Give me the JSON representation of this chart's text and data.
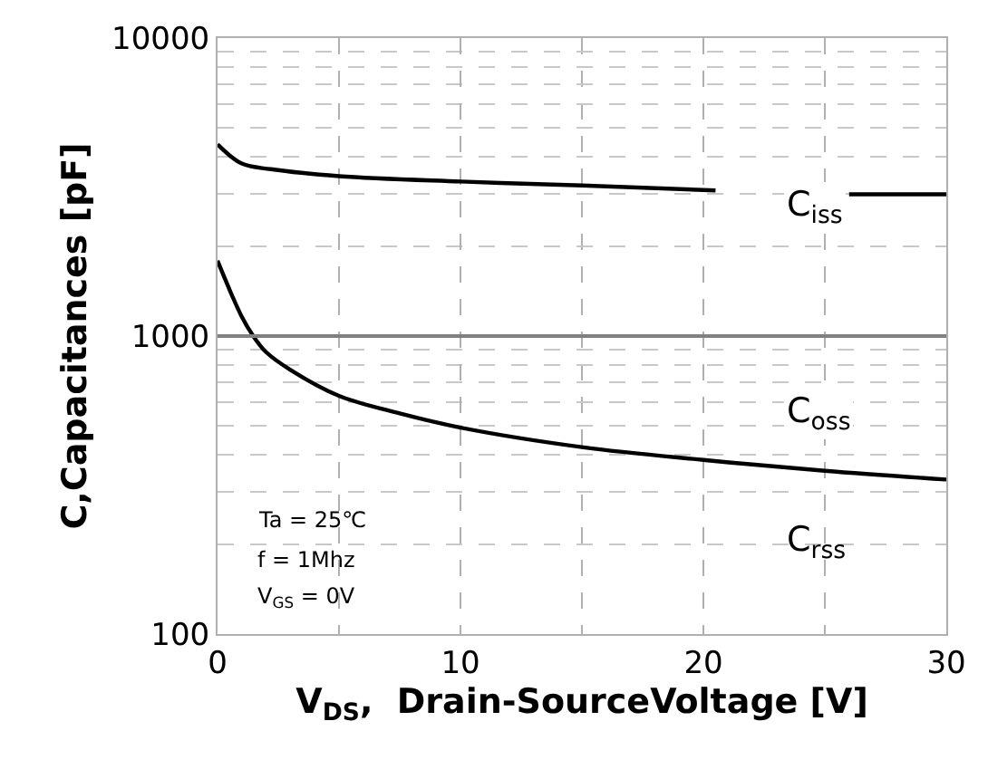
{
  "chart_data": {
    "type": "line",
    "xlabel": "V$_{DS}$,  Drain-SourceVoltage [V]",
    "ylabel": "C,Capacitances [pF]",
    "log": "y",
    "xlim": [
      0,
      30
    ],
    "ylim": [
      100,
      10000
    ],
    "xticks": [
      0,
      10,
      20,
      30
    ],
    "yticks": [
      100,
      1000,
      10000
    ],
    "grid": true,
    "marker": "none",
    "line_style": "solid",
    "ref_lines": [
      {
        "axis": "y",
        "value": 1000,
        "color": "#808080"
      }
    ],
    "series": [
      {
        "name": "C$_{iss}$",
        "color": "#000000",
        "x": [
          0,
          1,
          2.2,
          5,
          10,
          15,
          20.5,
          23,
          26,
          30
        ],
        "values": [
          4400,
          3790,
          3630,
          3440,
          3300,
          3200,
          3080,
          null,
          2990,
          2990
        ]
      },
      {
        "name": "C$_{oss}$",
        "color": "#000000",
        "x": [
          0,
          1,
          1.47,
          2,
          3,
          5,
          7.5,
          10,
          15,
          20,
          25,
          30
        ],
        "values": [
          1790,
          1160,
          1000,
          883,
          770,
          630,
          550,
          493,
          424,
          384,
          353,
          330
        ]
      }
    ],
    "annotations": [
      "C$_{rss}$",
      "Ta = 25℃",
      "f = 1Mhz",
      "V$_{GS}$ = 0V"
    ]
  }
}
